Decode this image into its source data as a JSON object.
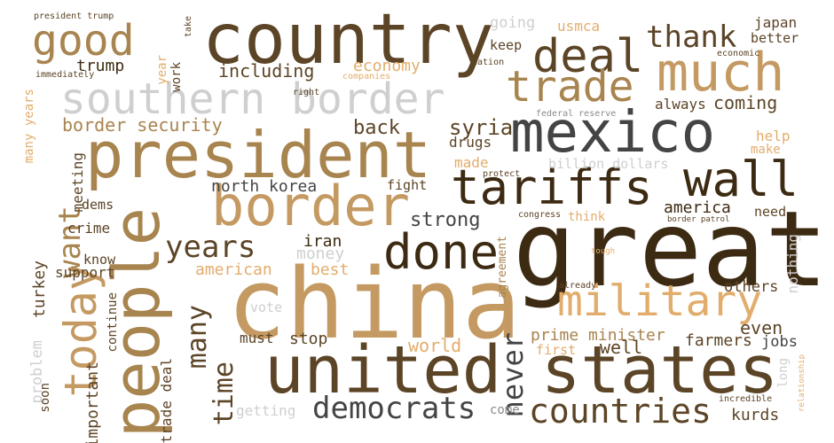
{
  "palette": {
    "dark_brown": "#3d2a12",
    "brown": "#5c4426",
    "tan": "#a8844f",
    "light_tan": "#c49a62",
    "peach": "#e2ad6c",
    "charcoal": "#444444",
    "gray": "#8a8a8a",
    "light_gray": "#cfcfcf"
  },
  "words": [
    {
      "text": "great",
      "color": "#3d2a12"
    },
    {
      "text": "china",
      "color": "#c49a62"
    },
    {
      "text": "country",
      "color": "#5c4426"
    },
    {
      "text": "mexico",
      "color": "#444444"
    },
    {
      "text": "united states",
      "color": "#5c4426"
    },
    {
      "text": "people",
      "color": "#a8844f"
    },
    {
      "text": "president",
      "color": "#a8844f"
    },
    {
      "text": "much",
      "color": "#c49a62"
    },
    {
      "text": "border",
      "color": "#c49a62"
    },
    {
      "text": "southern border",
      "color": "#cfcfcf"
    },
    {
      "text": "deal",
      "color": "#5c4426"
    },
    {
      "text": "trade",
      "color": "#a8844f"
    },
    {
      "text": "tariffs",
      "color": "#3d2a12"
    },
    {
      "text": "wall",
      "color": "#3d2a12"
    },
    {
      "text": "good",
      "color": "#a8844f"
    },
    {
      "text": "done",
      "color": "#3d2a12"
    },
    {
      "text": "military",
      "color": "#e2ad6c"
    },
    {
      "text": "today",
      "color": "#c49a62"
    },
    {
      "text": "countries",
      "color": "#5c4426"
    },
    {
      "text": "democrats",
      "color": "#444444"
    },
    {
      "text": "thank",
      "color": "#5c4426"
    },
    {
      "text": "years",
      "color": "#5c4426"
    },
    {
      "text": "time",
      "color": "#5c4426"
    },
    {
      "text": "many",
      "color": "#5c4426"
    },
    {
      "text": "never",
      "color": "#444444"
    },
    {
      "text": "want",
      "color": "#a8844f"
    },
    {
      "text": "syria",
      "color": "#5c4426"
    },
    {
      "text": "drugs",
      "color": "#5c4426"
    },
    {
      "text": "including",
      "color": "#5c4426"
    },
    {
      "text": "trump",
      "color": "#3d2a12"
    },
    {
      "text": "border security",
      "color": "#a8844f"
    },
    {
      "text": "economy",
      "color": "#e2ad6c"
    },
    {
      "text": "back",
      "color": "#5c4426"
    },
    {
      "text": "north korea",
      "color": "#444444"
    },
    {
      "text": "strong",
      "color": "#444444"
    },
    {
      "text": "iran",
      "color": "#3d2a12"
    },
    {
      "text": "money",
      "color": "#cfcfcf"
    },
    {
      "text": "american",
      "color": "#e2ad6c"
    },
    {
      "text": "best",
      "color": "#e2ad6c"
    },
    {
      "text": "world",
      "color": "#e2ad6c"
    },
    {
      "text": "prime minister",
      "color": "#a8844f"
    },
    {
      "text": "first",
      "color": "#e2ad6c"
    },
    {
      "text": "well",
      "color": "#5c4426"
    },
    {
      "text": "farmers",
      "color": "#5c4426"
    },
    {
      "text": "jobs",
      "color": "#444444"
    },
    {
      "text": "kurds",
      "color": "#5c4426"
    },
    {
      "text": "others",
      "color": "#5c4426"
    },
    {
      "text": "even",
      "color": "#5c4426"
    },
    {
      "text": "america",
      "color": "#3d2a12"
    },
    {
      "text": "need",
      "color": "#5c4426"
    },
    {
      "text": "coming",
      "color": "#5c4426"
    },
    {
      "text": "always",
      "color": "#5c4426"
    },
    {
      "text": "help",
      "color": "#e2ad6c"
    },
    {
      "text": "make",
      "color": "#e2ad6c"
    },
    {
      "text": "made",
      "color": "#e2ad6c"
    },
    {
      "text": "billion dollars",
      "color": "#cfcfcf"
    },
    {
      "text": "fight",
      "color": "#5c4426"
    },
    {
      "text": "think",
      "color": "#e2ad6c"
    },
    {
      "text": "usmca",
      "color": "#e2ad6c"
    },
    {
      "text": "going",
      "color": "#cfcfcf"
    },
    {
      "text": "keep",
      "color": "#5c4426"
    },
    {
      "text": "japan",
      "color": "#5c4426"
    },
    {
      "text": "better",
      "color": "#5c4426"
    },
    {
      "text": "economic",
      "color": "#5c4426"
    },
    {
      "text": "nation",
      "color": "#5c4426"
    },
    {
      "text": "companies",
      "color": "#e2ad6c"
    },
    {
      "text": "federal reserve",
      "color": "#8a8a8a"
    },
    {
      "text": "protect",
      "color": "#5c4426"
    },
    {
      "text": "congress",
      "color": "#5c4426"
    },
    {
      "text": "border patrol",
      "color": "#5c4426"
    },
    {
      "text": "tough",
      "color": "#e2ad6c"
    },
    {
      "text": "already",
      "color": "#5c4426"
    },
    {
      "text": "agreement",
      "color": "#a8844f"
    },
    {
      "text": "nothing",
      "color": "#cfcfcf"
    },
    {
      "text": "long",
      "color": "#cfcfcf"
    },
    {
      "text": "relationship",
      "color": "#e2ad6c"
    },
    {
      "text": "incredible",
      "color": "#5c4426"
    },
    {
      "text": "come",
      "color": "#8a8a8a"
    },
    {
      "text": "getting",
      "color": "#cfcfcf"
    },
    {
      "text": "must",
      "color": "#5c4426"
    },
    {
      "text": "stop",
      "color": "#5c4426"
    },
    {
      "text": "vote",
      "color": "#cfcfcf"
    },
    {
      "text": "president trump",
      "color": "#5c4426"
    },
    {
      "text": "take",
      "color": "#5c4426"
    },
    {
      "text": "work",
      "color": "#5c4426"
    },
    {
      "text": "year",
      "color": "#e2ad6c"
    },
    {
      "text": "immediately",
      "color": "#5c4426"
    },
    {
      "text": "right",
      "color": "#5c4426"
    },
    {
      "text": "many years",
      "color": "#e2ad6c"
    },
    {
      "text": "meeting",
      "color": "#5c4426"
    },
    {
      "text": "dems",
      "color": "#5c4426"
    },
    {
      "text": "crime",
      "color": "#5c4426"
    },
    {
      "text": "know",
      "color": "#5c4426"
    },
    {
      "text": "support",
      "color": "#5c4426"
    },
    {
      "text": "turkey",
      "color": "#5c4426"
    },
    {
      "text": "continue",
      "color": "#5c4426"
    },
    {
      "text": "problem",
      "color": "#cfcfcf"
    },
    {
      "text": "soon",
      "color": "#5c4426"
    },
    {
      "text": "important",
      "color": "#5c4426"
    },
    {
      "text": "trade deal",
      "color": "#5c4426"
    }
  ]
}
